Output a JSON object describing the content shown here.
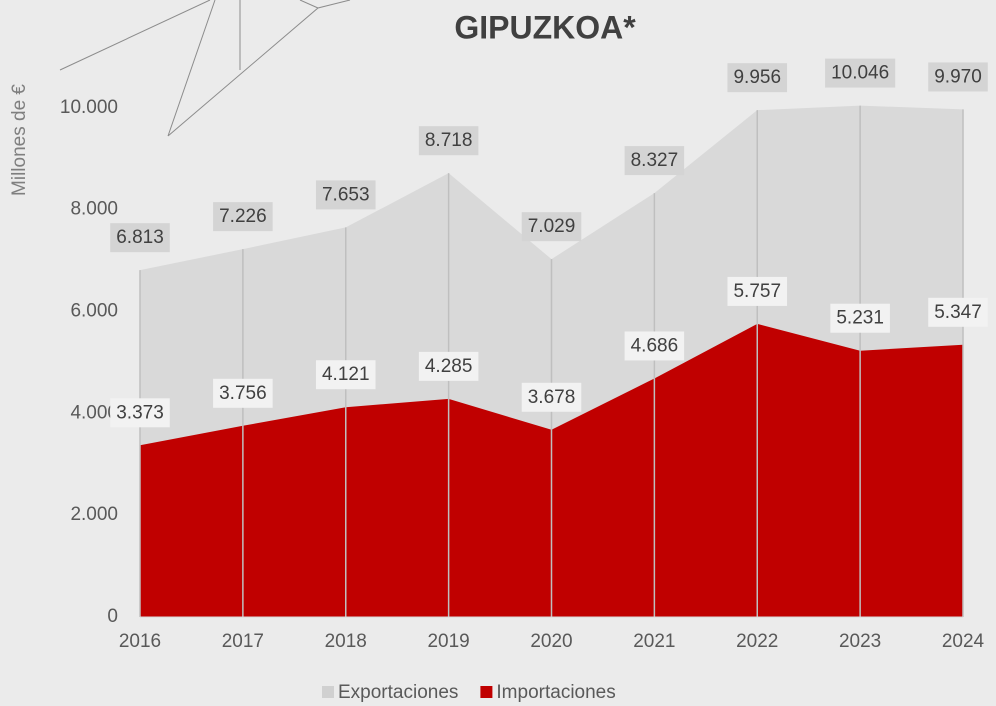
{
  "chart_data": {
    "type": "area",
    "title": "GIPUZKOA*",
    "y_label": "Millones de €",
    "categories": [
      "2016",
      "2017",
      "2018",
      "2019",
      "2020",
      "2021",
      "2022",
      "2023",
      "2024"
    ],
    "series": [
      {
        "name": "Exportaciones",
        "color": "#d9d9d9",
        "label_box": "#d4d4d4",
        "values": [
          6813,
          7226,
          7653,
          8718,
          7029,
          8327,
          9956,
          10046,
          9970
        ],
        "value_labels": [
          "6.813",
          "7.226",
          "7.653",
          "8.718",
          "7.029",
          "8.327",
          "9.956",
          "10.046",
          "9.970"
        ]
      },
      {
        "name": "Importaciones",
        "color": "#c00000",
        "label_box": "#f2f2f2",
        "values": [
          3373,
          3756,
          4121,
          4285,
          3678,
          4686,
          5757,
          5231,
          5347
        ],
        "value_labels": [
          "3.373",
          "3.756",
          "4.121",
          "4.285",
          "3.678",
          "4.686",
          "5.757",
          "5.231",
          "5.347"
        ]
      }
    ],
    "ylim": [
      0,
      11000
    ],
    "yticks": [
      0,
      {
        "value": 2000,
        "label": "2.000"
      },
      {
        "value": 4000,
        "label": "4.000"
      },
      {
        "value": 6000,
        "label": "6.000"
      },
      {
        "value": 8000,
        "label": "8.000"
      },
      {
        "value": 10000,
        "label": "10.000"
      }
    ],
    "grid": "vertical",
    "legend": "bottom"
  }
}
